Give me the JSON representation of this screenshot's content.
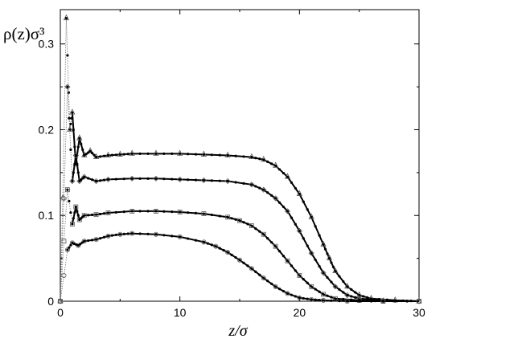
{
  "chart_data": {
    "type": "line",
    "ylabel": "ρ(z)σ³",
    "xlabel": "z/σ",
    "xlim": [
      0,
      30
    ],
    "ylim": [
      0,
      0.34
    ],
    "xticks": [
      "0",
      "10",
      "20",
      "30"
    ],
    "yticks": [
      "0",
      "0.1",
      "0.2",
      "0.3"
    ],
    "grid": false,
    "legend": "none",
    "series": [
      {
        "marker": "triangle",
        "x": [
          0,
          0.2,
          0.5,
          0.8,
          1.0,
          1.3,
          1.6,
          2.0,
          2.5,
          3,
          4,
          5,
          6,
          8,
          10,
          12,
          14,
          16,
          17,
          18,
          19,
          20,
          21,
          22,
          22.5,
          23,
          24,
          25,
          26,
          28,
          30
        ],
        "y": [
          0.0,
          0.12,
          0.33,
          0.2,
          0.22,
          0.16,
          0.19,
          0.17,
          0.175,
          0.168,
          0.17,
          0.171,
          0.172,
          0.172,
          0.172,
          0.171,
          0.17,
          0.168,
          0.165,
          0.158,
          0.145,
          0.125,
          0.098,
          0.066,
          0.05,
          0.035,
          0.017,
          0.007,
          0.003,
          0.001,
          0.0
        ]
      },
      {
        "marker": "diamond",
        "x": [
          0,
          0.3,
          0.6,
          1.0,
          1.3,
          1.6,
          2.0,
          3,
          4,
          6,
          8,
          10,
          12,
          14,
          16,
          17,
          18,
          19,
          20,
          21,
          22,
          23,
          24,
          25,
          27,
          30
        ],
        "y": [
          0.0,
          0.12,
          0.25,
          0.14,
          0.17,
          0.14,
          0.145,
          0.14,
          0.142,
          0.143,
          0.143,
          0.142,
          0.141,
          0.14,
          0.136,
          0.13,
          0.12,
          0.105,
          0.082,
          0.056,
          0.033,
          0.017,
          0.007,
          0.003,
          0.001,
          0.0
        ]
      },
      {
        "marker": "square",
        "x": [
          0,
          0.3,
          0.6,
          1.0,
          1.3,
          1.6,
          2,
          3,
          4,
          6,
          8,
          10,
          12,
          14,
          15,
          16,
          17,
          18,
          19,
          20,
          21,
          22,
          23,
          25,
          27,
          30
        ],
        "y": [
          0.0,
          0.07,
          0.13,
          0.09,
          0.11,
          0.095,
          0.1,
          0.101,
          0.103,
          0.105,
          0.105,
          0.104,
          0.102,
          0.098,
          0.094,
          0.088,
          0.078,
          0.064,
          0.047,
          0.03,
          0.017,
          0.008,
          0.003,
          0.001,
          0.0,
          0.0
        ]
      },
      {
        "marker": "circle",
        "x": [
          0,
          0.3,
          0.6,
          1.0,
          1.5,
          2,
          3,
          4,
          5,
          6,
          8,
          10,
          12,
          13,
          14,
          15,
          16,
          17,
          18,
          19,
          20,
          21,
          22,
          24,
          27,
          30
        ],
        "y": [
          0.0,
          0.03,
          0.06,
          0.068,
          0.065,
          0.07,
          0.072,
          0.076,
          0.078,
          0.079,
          0.078,
          0.075,
          0.069,
          0.064,
          0.057,
          0.048,
          0.038,
          0.027,
          0.017,
          0.009,
          0.004,
          0.002,
          0.001,
          0.0,
          0.0,
          0.0
        ]
      }
    ]
  }
}
